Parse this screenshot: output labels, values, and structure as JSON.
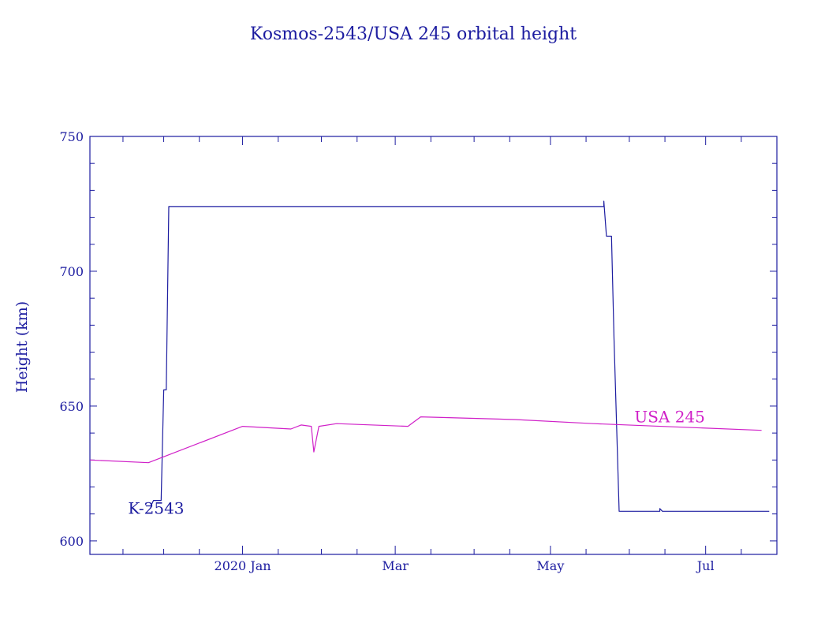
{
  "chart_data": {
    "type": "line",
    "title": "Kosmos-2543/USA 245 orbital height",
    "xlabel": "",
    "ylabel": "Height (km)",
    "ylim": [
      595,
      750
    ],
    "xlim": [
      "2019-11-02",
      "2020-07-29"
    ],
    "grid": false,
    "y_ticks": [
      {
        "value": 600,
        "label": "600"
      },
      {
        "value": 650,
        "label": "650"
      },
      {
        "value": 700,
        "label": "700"
      },
      {
        "value": 750,
        "label": "750"
      }
    ],
    "x_ticks": [
      {
        "date": "2020-01-01",
        "label": "2020 Jan"
      },
      {
        "date": "2020-03-01",
        "label": "Mar"
      },
      {
        "date": "2020-05-01",
        "label": "May"
      },
      {
        "date": "2020-07-01",
        "label": "Jul"
      }
    ],
    "series": [
      {
        "name": "K-2543",
        "color": "#1c1ca0",
        "label_anchor": {
          "date": "2019-11-17",
          "value": 610
        },
        "points": [
          {
            "x": "2019-11-24",
            "y": 613
          },
          {
            "x": "2019-11-26",
            "y": 613
          },
          {
            "x": "2019-11-27",
            "y": 615
          },
          {
            "x": "2019-11-30",
            "y": 615
          },
          {
            "x": "2019-12-01",
            "y": 656
          },
          {
            "x": "2019-12-02",
            "y": 656
          },
          {
            "x": "2019-12-03",
            "y": 724
          },
          {
            "x": "2020-05-22",
            "y": 724
          },
          {
            "x": "2020-05-22",
            "y": 726
          },
          {
            "x": "2020-05-23",
            "y": 713
          },
          {
            "x": "2020-05-25",
            "y": 713
          },
          {
            "x": "2020-05-26",
            "y": 675
          },
          {
            "x": "2020-05-28",
            "y": 611
          },
          {
            "x": "2020-06-13",
            "y": 611
          },
          {
            "x": "2020-06-13",
            "y": 612
          },
          {
            "x": "2020-06-14",
            "y": 611
          },
          {
            "x": "2020-07-26",
            "y": 611
          }
        ]
      },
      {
        "name": "USA 245",
        "color": "#d020c8",
        "label_anchor": {
          "date": "2020-06-03",
          "value": 644
        },
        "points": [
          {
            "x": "2019-11-02",
            "y": 630
          },
          {
            "x": "2019-11-25",
            "y": 629
          },
          {
            "x": "2020-01-01",
            "y": 642.5
          },
          {
            "x": "2020-01-20",
            "y": 641.5
          },
          {
            "x": "2020-01-24",
            "y": 643
          },
          {
            "x": "2020-01-28",
            "y": 642.5
          },
          {
            "x": "2020-01-29",
            "y": 633
          },
          {
            "x": "2020-01-31",
            "y": 642.5
          },
          {
            "x": "2020-02-07",
            "y": 643.5
          },
          {
            "x": "2020-03-06",
            "y": 642.5
          },
          {
            "x": "2020-03-11",
            "y": 646
          },
          {
            "x": "2020-04-17",
            "y": 645
          },
          {
            "x": "2020-05-18",
            "y": 643.5
          },
          {
            "x": "2020-07-23",
            "y": 641
          }
        ]
      }
    ]
  }
}
